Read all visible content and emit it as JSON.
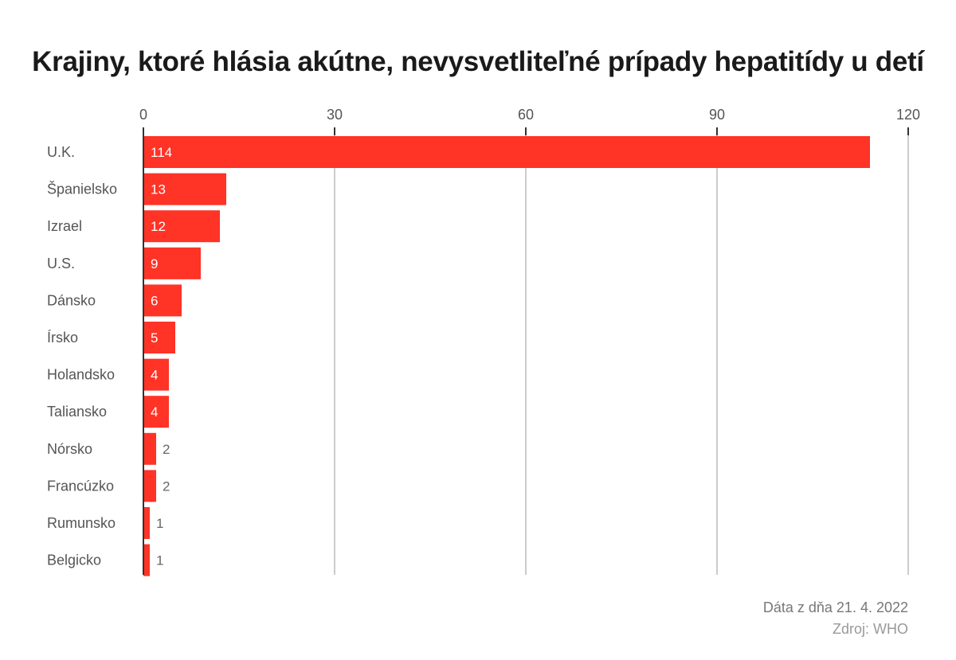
{
  "chart_data": {
    "type": "bar",
    "orientation": "horizontal",
    "title": "Krajiny, ktoré hlásia akútne, nevysvetliteľné prípady hepatitídy u detí",
    "categories": [
      "U.K.",
      "Španielsko",
      "Izrael",
      "U.S.",
      "Dánsko",
      "Írsko",
      "Holandsko",
      "Taliansko",
      "Nórsko",
      "Francúzko",
      "Rumunsko",
      "Belgicko"
    ],
    "values": [
      114,
      13,
      12,
      9,
      6,
      5,
      4,
      4,
      2,
      2,
      1,
      1
    ],
    "xticks": [
      "0",
      "30",
      "60",
      "90",
      "120"
    ],
    "xlim": [
      0,
      120
    ],
    "grid": true,
    "bar_color": "#ff3326"
  },
  "footer": {
    "date": "Dáta z dňa 21. 4. 2022",
    "source": "Zdroj: WHO"
  },
  "colors": {
    "bar": "#ff3326",
    "grid": "#cccccc",
    "axis": "#333333"
  }
}
